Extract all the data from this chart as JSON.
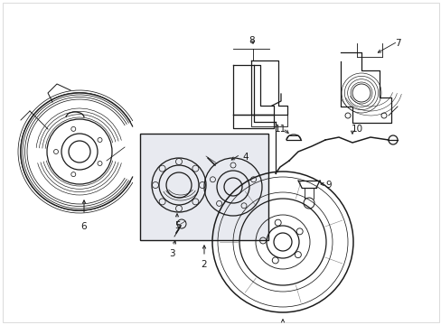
{
  "bg_color": "#ffffff",
  "line_color": "#1a1a1a",
  "inset_bg": "#e8eaf0",
  "fig_width": 4.89,
  "fig_height": 3.6,
  "dpi": 100,
  "border_color": "#aaaaaa",
  "label_fontsize": 7.5
}
